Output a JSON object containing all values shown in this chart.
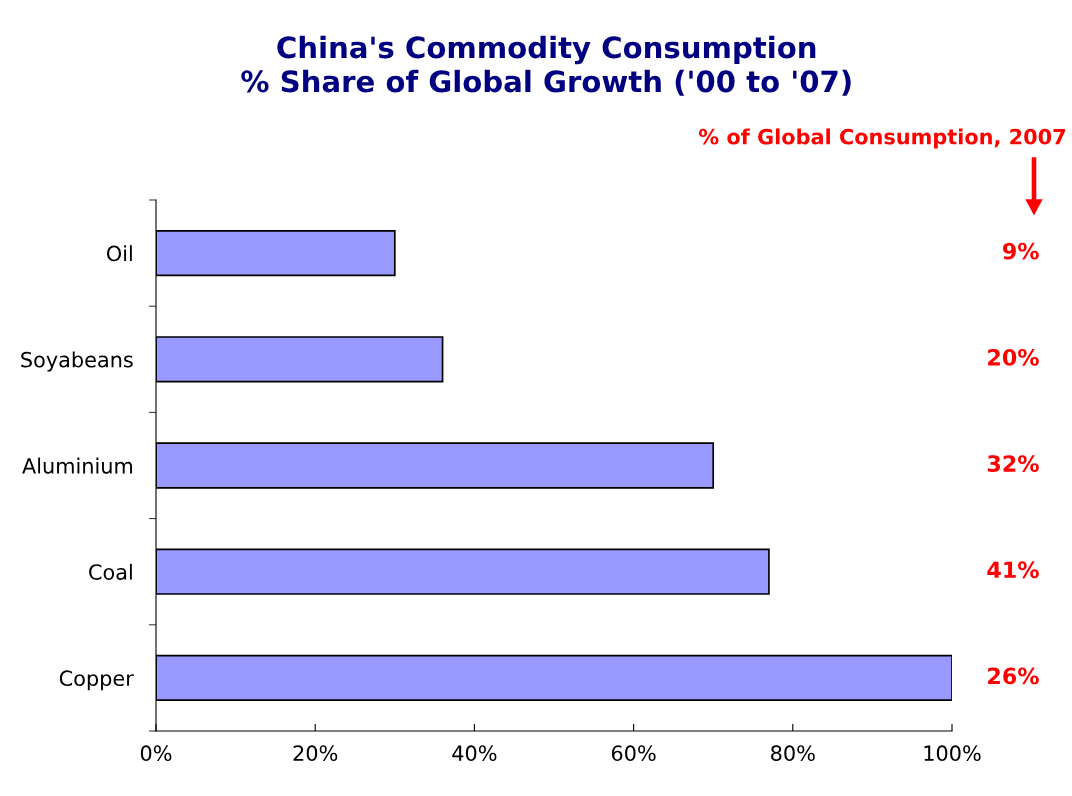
{
  "chart_data": {
    "type": "bar",
    "orientation": "horizontal",
    "title": "China's Commodity Consumption\n% Share of Global Growth ('00 to '07)",
    "categories": [
      "Oil",
      "Soyabeans",
      "Aluminium",
      "Coal",
      "Copper"
    ],
    "values": [
      30,
      36,
      70,
      77,
      100
    ],
    "color": "#9999ff",
    "xlim": [
      0,
      100
    ],
    "xticks": [
      {
        "value": 0,
        "label": "0%"
      },
      {
        "value": 20,
        "label": "20%"
      },
      {
        "value": 40,
        "label": "40%"
      },
      {
        "value": 60,
        "label": "60%"
      },
      {
        "value": 80,
        "label": "80%"
      },
      {
        "value": 100,
        "label": "100%"
      }
    ],
    "grid": false,
    "legend": false,
    "annotations": [
      "% of Global Consumption, 2007",
      "9%",
      "20%",
      "32%",
      "41%",
      "26%"
    ]
  }
}
